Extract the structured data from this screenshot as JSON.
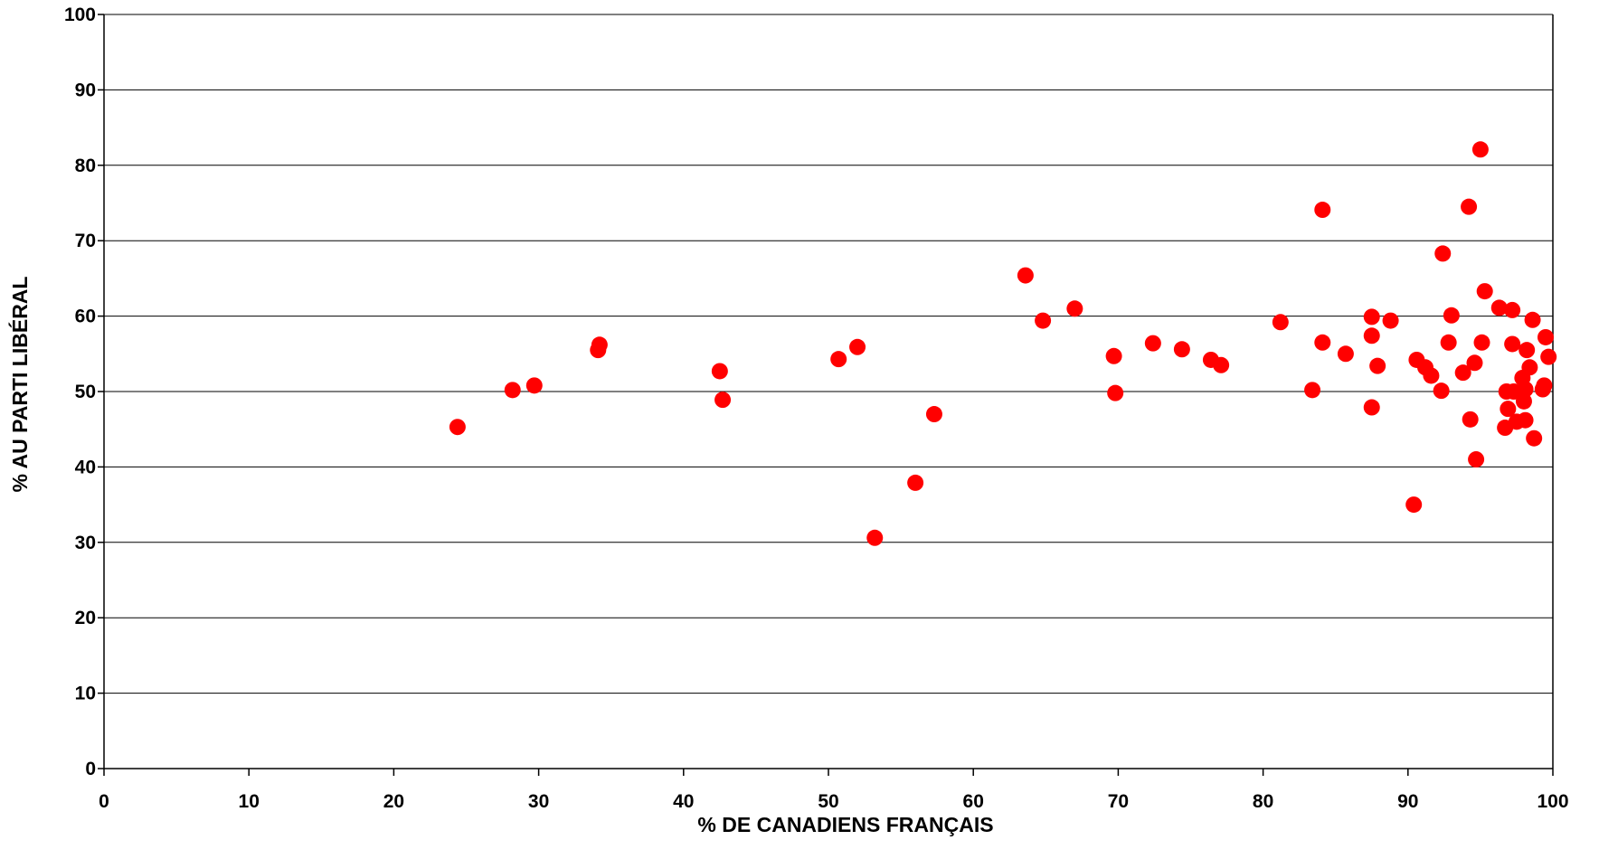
{
  "chart_data": {
    "type": "scatter",
    "title": "",
    "xlabel": "% DE CANADIENS FRANÇAIS",
    "ylabel": "% AU PARTI LIBÉRAL",
    "xlim": [
      0,
      100
    ],
    "ylim": [
      0,
      100
    ],
    "xticks": [
      0,
      10,
      20,
      30,
      40,
      50,
      60,
      70,
      80,
      90,
      100
    ],
    "yticks": [
      0,
      10,
      20,
      30,
      40,
      50,
      60,
      70,
      80,
      90,
      100
    ],
    "grid": "horizontal",
    "legend": "none",
    "marker_color": "#ff0000",
    "series": [
      {
        "points": [
          [
            24.4,
            45.3
          ],
          [
            28.2,
            50.2
          ],
          [
            29.7,
            50.8
          ],
          [
            34.1,
            55.5
          ],
          [
            34.2,
            56.2
          ],
          [
            42.5,
            52.7
          ],
          [
            42.7,
            48.9
          ],
          [
            50.7,
            54.3
          ],
          [
            52.0,
            55.9
          ],
          [
            53.2,
            30.6
          ],
          [
            56.0,
            37.9
          ],
          [
            57.3,
            47.0
          ],
          [
            63.6,
            65.4
          ],
          [
            64.8,
            59.4
          ],
          [
            67.0,
            61.0
          ],
          [
            69.7,
            54.7
          ],
          [
            69.8,
            49.8
          ],
          [
            72.4,
            56.4
          ],
          [
            74.4,
            55.6
          ],
          [
            76.4,
            54.2
          ],
          [
            77.1,
            53.5
          ],
          [
            81.2,
            59.2
          ],
          [
            83.4,
            50.2
          ],
          [
            84.1,
            74.1
          ],
          [
            84.1,
            56.5
          ],
          [
            85.7,
            55.0
          ],
          [
            87.5,
            59.9
          ],
          [
            87.5,
            57.4
          ],
          [
            87.5,
            47.9
          ],
          [
            87.9,
            53.4
          ],
          [
            88.8,
            59.4
          ],
          [
            90.4,
            35.0
          ],
          [
            90.6,
            54.2
          ],
          [
            91.2,
            53.2
          ],
          [
            91.6,
            52.1
          ],
          [
            92.4,
            68.3
          ],
          [
            92.3,
            50.1
          ],
          [
            92.8,
            56.5
          ],
          [
            93.0,
            60.1
          ],
          [
            93.8,
            52.5
          ],
          [
            94.2,
            74.5
          ],
          [
            94.3,
            46.3
          ],
          [
            94.6,
            53.8
          ],
          [
            94.7,
            41.0
          ],
          [
            95.0,
            82.1
          ],
          [
            95.1,
            56.5
          ],
          [
            95.3,
            63.3
          ],
          [
            96.3,
            61.1
          ],
          [
            96.7,
            45.2
          ],
          [
            96.8,
            50.0
          ],
          [
            96.9,
            47.7
          ],
          [
            97.2,
            60.8
          ],
          [
            97.2,
            56.3
          ],
          [
            97.3,
            50.0
          ],
          [
            97.5,
            46.0
          ],
          [
            97.9,
            51.8
          ],
          [
            98.0,
            48.7
          ],
          [
            98.1,
            46.2
          ],
          [
            98.1,
            50.3
          ],
          [
            98.2,
            55.5
          ],
          [
            98.4,
            53.2
          ],
          [
            98.6,
            59.5
          ],
          [
            98.7,
            43.8
          ],
          [
            99.3,
            50.3
          ],
          [
            99.4,
            50.8
          ],
          [
            99.5,
            57.2
          ],
          [
            99.7,
            54.6
          ]
        ]
      }
    ]
  }
}
